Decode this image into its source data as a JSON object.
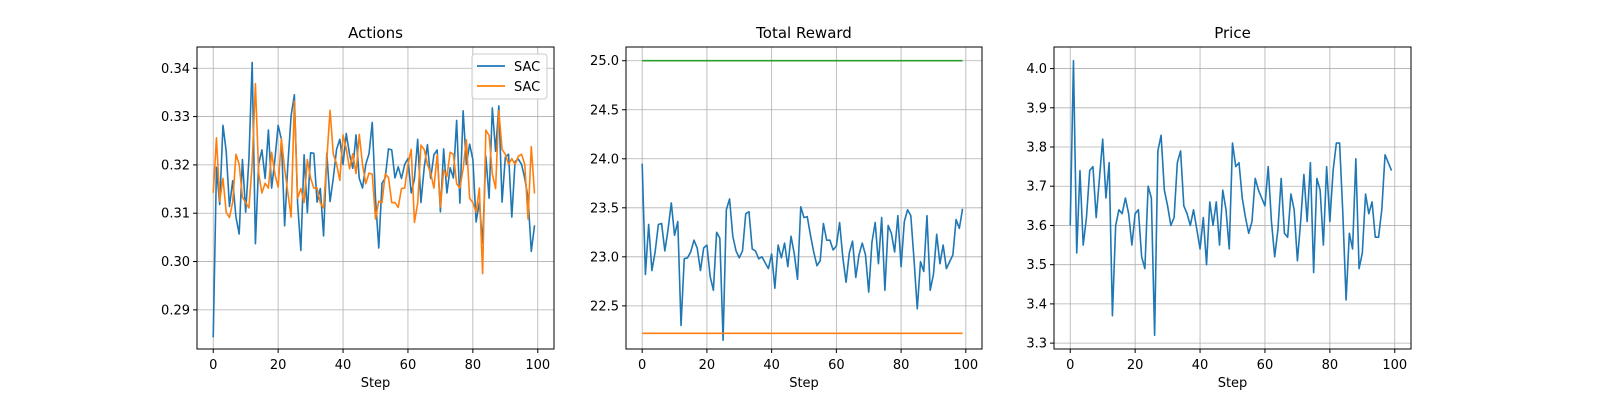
{
  "chart_data": [
    {
      "type": "line",
      "title": "Actions",
      "xlabel": "Step",
      "ylabel": "",
      "xlim": [
        -5,
        105
      ],
      "ylim": [
        0.2819,
        0.3444
      ],
      "xticks": [
        0,
        20,
        40,
        60,
        80,
        100
      ],
      "yticks": [
        0.29,
        0.3,
        0.31,
        0.32,
        0.33,
        0.34
      ],
      "xtick_labels": [
        "0",
        "20",
        "40",
        "60",
        "80",
        "100"
      ],
      "ytick_labels": [
        "0.29",
        "0.30",
        "0.31",
        "0.32",
        "0.33",
        "0.34"
      ],
      "grid": true,
      "legend": "top-right",
      "series": [
        {
          "name": "SAC",
          "color": "#1f77b4",
          "values": [
            0.2843,
            0.3195,
            0.3118,
            0.3282,
            0.3228,
            0.3114,
            0.3167,
            0.3092,
            0.3057,
            0.3211,
            0.3102,
            0.3213,
            0.3412,
            0.3037,
            0.3202,
            0.3231,
            0.3172,
            0.3272,
            0.3152,
            0.3211,
            0.3282,
            0.3253,
            0.3074,
            0.3201,
            0.3302,
            0.3345,
            0.3121,
            0.3023,
            0.3221,
            0.3101,
            0.3225,
            0.3224,
            0.3123,
            0.3151,
            0.3053,
            0.3224,
            0.3124,
            0.3173,
            0.3232,
            0.3253,
            0.3201,
            0.3265,
            0.3222,
            0.3193,
            0.3262,
            0.3172,
            0.3152,
            0.3201,
            0.3223,
            0.3288,
            0.3131,
            0.3028,
            0.3162,
            0.3173,
            0.3233,
            0.3231,
            0.3173,
            0.3196,
            0.3172,
            0.3201,
            0.3213,
            0.3142,
            0.3171,
            0.3253,
            0.3122,
            0.3194,
            0.3242,
            0.3172,
            0.3221,
            0.3231,
            0.3103,
            0.3233,
            0.3142,
            0.3194,
            0.3173,
            0.3292,
            0.3121,
            0.3312,
            0.3201,
            0.3243,
            0.3211,
            0.3082,
            0.3122,
            0.3038,
            0.3218,
            0.3131,
            0.3318,
            0.3228,
            0.3322,
            0.3123,
            0.3216,
            0.3222,
            0.3092,
            0.3207,
            0.3212,
            0.3201,
            0.3172,
            0.3132,
            0.3021,
            0.3075
          ]
        },
        {
          "name": "SAC",
          "color": "#ff7f0e",
          "values": [
            0.3142,
            0.3256,
            0.3125,
            0.3172,
            0.3102,
            0.3091,
            0.3123,
            0.3222,
            0.3201,
            0.3133,
            0.3122,
            0.3111,
            0.3202,
            0.3368,
            0.3182,
            0.3142,
            0.3162,
            0.3152,
            0.3226,
            0.3181,
            0.3154,
            0.3254,
            0.3192,
            0.3142,
            0.3092,
            0.3332,
            0.3131,
            0.3151,
            0.3122,
            0.3211,
            0.3173,
            0.3152,
            0.3152,
            0.3121,
            0.3111,
            0.3212,
            0.3313,
            0.3222,
            0.3202,
            0.3168,
            0.3262,
            0.3233,
            0.3192,
            0.3223,
            0.3182,
            0.3263,
            0.3201,
            0.3161,
            0.3183,
            0.3181,
            0.3088,
            0.3125,
            0.3122,
            0.3181,
            0.3174,
            0.3122,
            0.3122,
            0.3112,
            0.3151,
            0.3152,
            0.3201,
            0.3232,
            0.3081,
            0.3121,
            0.3241,
            0.3232,
            0.3201,
            0.3183,
            0.3152,
            0.3221,
            0.3113,
            0.3189,
            0.3176,
            0.3226,
            0.3222,
            0.3161,
            0.3152,
            0.3192,
            0.3252,
            0.3131,
            0.3122,
            0.3102,
            0.3152,
            0.2975,
            0.3272,
            0.3261,
            0.3181,
            0.3151,
            0.3312,
            0.3232,
            0.3222,
            0.3201,
            0.3213,
            0.3201,
            0.3218,
            0.3222,
            0.3201,
            0.3088,
            0.3238,
            0.3141
          ]
        }
      ]
    },
    {
      "type": "line",
      "title": "Total Reward",
      "xlabel": "Step",
      "ylabel": "",
      "xlim": [
        -5,
        105
      ],
      "ylim": [
        22.06,
        25.14
      ],
      "xticks": [
        0,
        20,
        40,
        60,
        80,
        100
      ],
      "yticks": [
        22.5,
        23.0,
        23.5,
        24.0,
        24.5,
        25.0
      ],
      "xtick_labels": [
        "0",
        "20",
        "40",
        "60",
        "80",
        "100"
      ],
      "ytick_labels": [
        "22.5",
        "23.0",
        "23.5",
        "24.0",
        "24.5",
        "25.0"
      ],
      "grid": true,
      "legend": "",
      "series": [
        {
          "name": "",
          "color": "#1f77b4",
          "values": [
            23.95,
            22.82,
            23.33,
            22.86,
            23.05,
            23.33,
            23.34,
            23.06,
            23.28,
            23.55,
            23.22,
            23.36,
            22.3,
            22.98,
            22.99,
            23.05,
            23.17,
            23.09,
            22.86,
            23.09,
            23.12,
            22.8,
            22.66,
            23.25,
            23.19,
            22.15,
            23.48,
            23.59,
            23.21,
            23.06,
            22.99,
            23.06,
            23.44,
            23.46,
            23.08,
            23.06,
            22.98,
            23.0,
            22.94,
            22.88,
            23.03,
            22.68,
            23.12,
            22.99,
            23.14,
            22.9,
            23.21,
            23.03,
            22.77,
            23.51,
            23.4,
            23.41,
            23.22,
            23.05,
            22.91,
            22.96,
            23.34,
            23.17,
            23.17,
            23.07,
            23.11,
            23.35,
            22.99,
            22.74,
            23.04,
            23.16,
            22.79,
            23.02,
            23.14,
            23.02,
            22.64,
            23.15,
            23.35,
            22.93,
            23.4,
            22.66,
            23.32,
            23.24,
            23.05,
            23.42,
            22.9,
            23.36,
            23.48,
            23.42,
            22.97,
            22.47,
            22.95,
            22.85,
            23.42,
            22.66,
            22.82,
            23.23,
            22.93,
            23.12,
            22.88,
            22.95,
            23.02,
            23.38,
            23.29,
            23.49
          ]
        },
        {
          "name": "",
          "color": "#2ca02c",
          "values": [
            25.0,
            25.0
          ]
        },
        {
          "name": "",
          "color": "#ff7f0e",
          "values": [
            22.22,
            22.22
          ]
        }
      ]
    },
    {
      "type": "line",
      "title": "Price",
      "xlabel": "Step",
      "ylabel": "",
      "xlim": [
        -5,
        105
      ],
      "ylim": [
        3.285,
        4.055
      ],
      "xticks": [
        0,
        20,
        40,
        60,
        80,
        100
      ],
      "yticks": [
        3.3,
        3.4,
        3.5,
        3.6,
        3.7,
        3.8,
        3.9,
        4.0
      ],
      "xtick_labels": [
        "0",
        "20",
        "40",
        "60",
        "80",
        "100"
      ],
      "ytick_labels": [
        "3.3",
        "3.4",
        "3.5",
        "3.6",
        "3.7",
        "3.8",
        "3.9",
        "4.0"
      ],
      "grid": true,
      "legend": "",
      "series": [
        {
          "name": "",
          "color": "#1f77b4",
          "values": [
            3.6,
            4.02,
            3.53,
            3.74,
            3.55,
            3.62,
            3.74,
            3.75,
            3.62,
            3.72,
            3.82,
            3.67,
            3.76,
            3.37,
            3.6,
            3.64,
            3.63,
            3.67,
            3.63,
            3.55,
            3.63,
            3.64,
            3.52,
            3.49,
            3.7,
            3.67,
            3.32,
            3.79,
            3.83,
            3.69,
            3.65,
            3.6,
            3.62,
            3.76,
            3.79,
            3.65,
            3.63,
            3.6,
            3.64,
            3.59,
            3.54,
            3.62,
            3.5,
            3.66,
            3.6,
            3.66,
            3.55,
            3.69,
            3.64,
            3.54,
            3.81,
            3.75,
            3.76,
            3.67,
            3.62,
            3.58,
            3.61,
            3.72,
            3.69,
            3.67,
            3.65,
            3.75,
            3.61,
            3.52,
            3.59,
            3.72,
            3.58,
            3.57,
            3.68,
            3.64,
            3.51,
            3.61,
            3.73,
            3.61,
            3.76,
            3.48,
            3.72,
            3.69,
            3.55,
            3.75,
            3.61,
            3.74,
            3.81,
            3.81,
            3.63,
            3.41,
            3.58,
            3.54,
            3.77,
            3.49,
            3.53,
            3.68,
            3.63,
            3.66,
            3.57,
            3.57,
            3.64,
            3.78,
            3.76,
            3.74
          ]
        }
      ]
    }
  ]
}
